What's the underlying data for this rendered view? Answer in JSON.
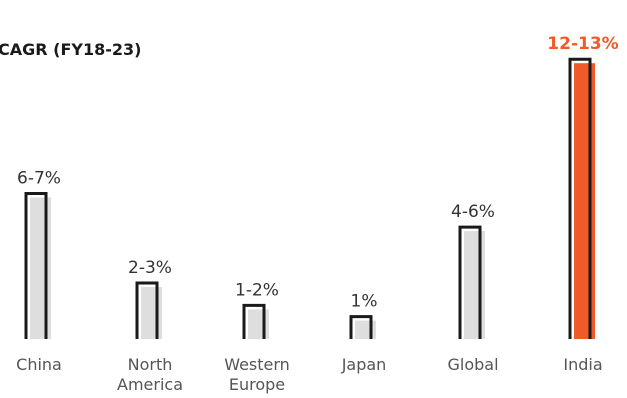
{
  "chart_data": {
    "type": "bar",
    "title": "CAGR (FY18-23)",
    "categories": [
      [
        "China"
      ],
      [
        "North",
        "America"
      ],
      [
        "Western",
        "Europe"
      ],
      [
        "Japan"
      ],
      [
        "Global"
      ],
      [
        "India"
      ]
    ],
    "labels": [
      "6-7%",
      "2-3%",
      "1-2%",
      "1%",
      "4-6%",
      "12-13%"
    ],
    "values": [
      6.5,
      2.5,
      1.5,
      1.0,
      5.0,
      12.5
    ],
    "ylim": [
      0,
      13
    ],
    "highlight_index": 5,
    "xlabel": "",
    "ylabel": "",
    "grid": false
  },
  "colors": {
    "bar_fill": "#dedede",
    "bar_outline": "#1a1a1a",
    "highlight": "#f05a28",
    "text": "#333333"
  }
}
